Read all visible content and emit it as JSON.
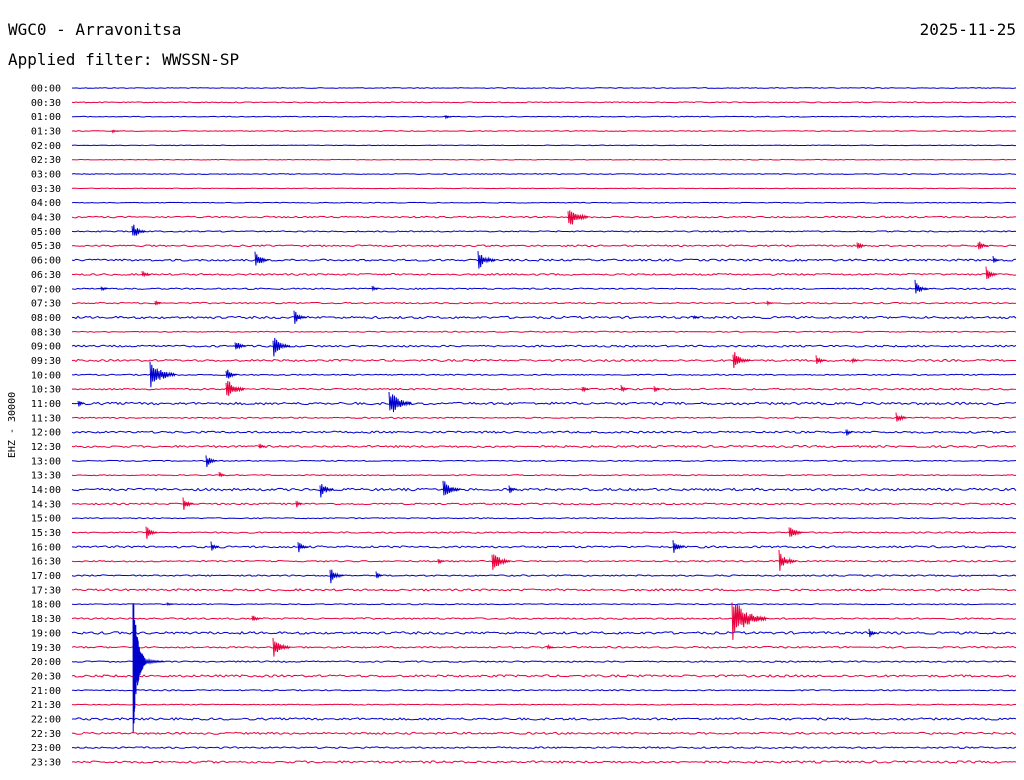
{
  "header": {
    "station": "WGC0 - Arravonitsa",
    "date": "2025-11-25",
    "filter": "Applied filter: WWSSN-SP"
  },
  "channel_label": "EHZ - 30000",
  "colors": {
    "trace_a": "#0000cc",
    "trace_b": "#e8003c",
    "background": "#ffffff",
    "text": "#000000"
  },
  "time_labels": [
    "00:00",
    "00:30",
    "01:00",
    "01:30",
    "02:00",
    "02:30",
    "03:00",
    "03:30",
    "04:00",
    "04:30",
    "05:00",
    "05:30",
    "06:00",
    "06:30",
    "07:00",
    "07:30",
    "08:00",
    "08:30",
    "09:00",
    "09:30",
    "10:00",
    "10:30",
    "11:00",
    "11:30",
    "12:00",
    "12:30",
    "13:00",
    "13:30",
    "14:00",
    "14:30",
    "15:00",
    "15:30",
    "16:00",
    "16:30",
    "17:00",
    "17:30",
    "18:00",
    "18:30",
    "19:00",
    "19:30",
    "20:00",
    "20:30",
    "21:00",
    "21:30",
    "22:00",
    "22:30",
    "23:00",
    "23:30"
  ]
}
